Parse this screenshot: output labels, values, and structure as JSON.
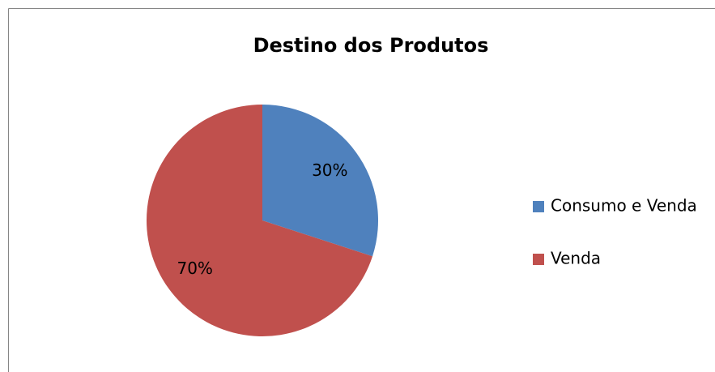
{
  "chart_data": {
    "type": "pie",
    "title": "Destino dos Produtos",
    "categories": [
      "Consumo e Venda",
      "Venda"
    ],
    "values": [
      30,
      70
    ],
    "value_labels": [
      "30%",
      "70%"
    ],
    "colors": [
      "#4f81bd",
      "#c0504d"
    ],
    "legend": "right"
  }
}
